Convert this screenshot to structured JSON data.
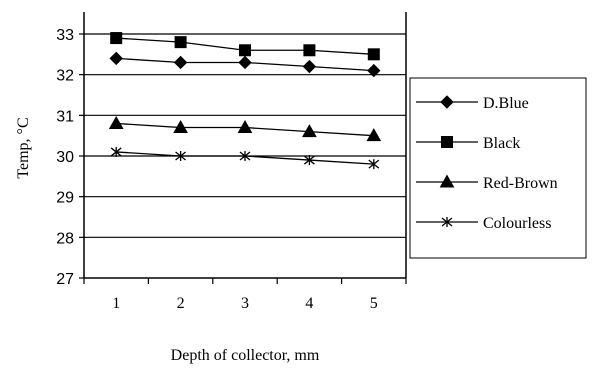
{
  "chart_data": {
    "type": "line",
    "title": "",
    "xlabel": "Depth of collector, mm",
    "ylabel": "Temp, °C",
    "x": [
      1,
      2,
      3,
      4,
      5
    ],
    "ylim": [
      27,
      33
    ],
    "yticks": [
      27,
      28,
      29,
      30,
      31,
      32,
      33
    ],
    "grid": "horizontal",
    "legend_position": "right",
    "series": [
      {
        "name": "D.Blue",
        "marker": "diamond",
        "color": "#000000",
        "values": [
          32.4,
          32.3,
          32.3,
          32.2,
          32.1
        ]
      },
      {
        "name": "Black",
        "marker": "square",
        "color": "#000000",
        "values": [
          32.9,
          32.8,
          32.6,
          32.6,
          32.5
        ]
      },
      {
        "name": "Red-Brown",
        "marker": "triangle",
        "color": "#000000",
        "values": [
          30.8,
          30.7,
          30.7,
          30.6,
          30.5
        ]
      },
      {
        "name": "Colourless",
        "marker": "star",
        "color": "#000000",
        "values": [
          30.1,
          30.0,
          30.0,
          29.9,
          29.8
        ]
      }
    ]
  }
}
